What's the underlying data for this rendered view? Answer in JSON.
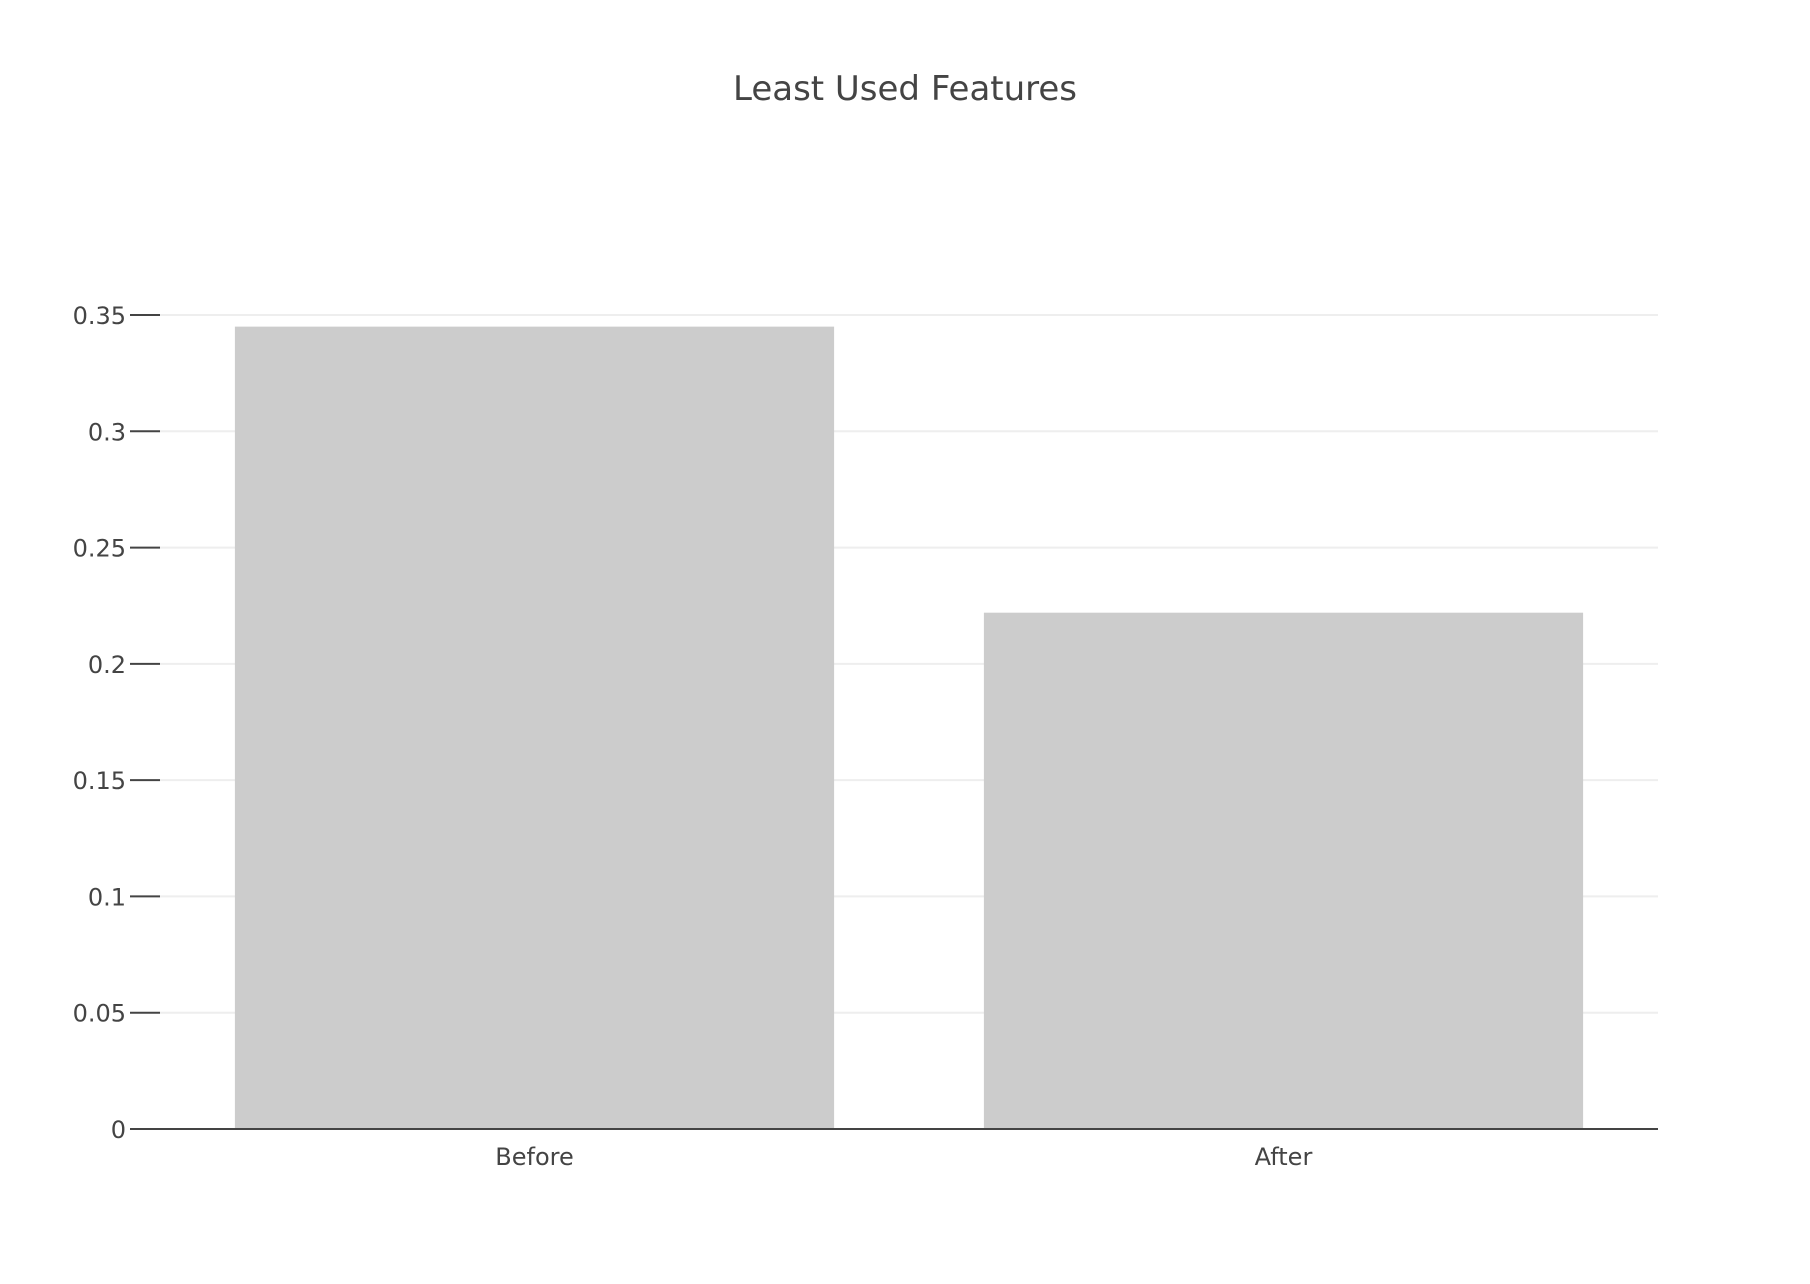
{
  "chart_data": {
    "type": "bar",
    "title": "Least Used Features",
    "categories": [
      "Before",
      "After"
    ],
    "values": [
      0.345,
      0.222
    ],
    "xlabel": "",
    "ylabel": "",
    "ylim": [
      0,
      0.35
    ],
    "yticks": [
      0,
      0.05,
      0.1,
      0.15,
      0.2,
      0.25,
      0.3,
      0.35
    ],
    "ytick_labels": [
      "0",
      "0.05",
      "0.1",
      "0.15",
      "0.2",
      "0.25",
      "0.3",
      "0.35"
    ],
    "grid": true,
    "legend": "none",
    "bar_color": "#cccccc",
    "grid_color": "#eeeeee",
    "text_color": "#444444"
  }
}
